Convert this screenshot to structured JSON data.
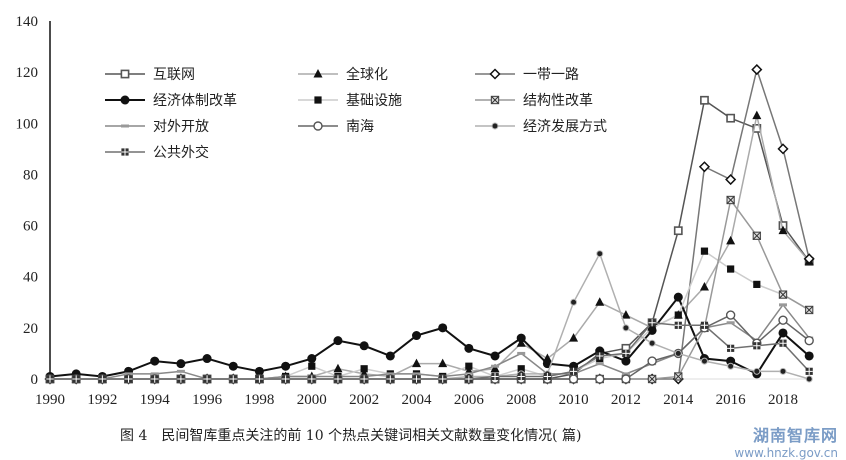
{
  "chart_data": {
    "type": "line",
    "title": "",
    "xlabel": "",
    "ylabel": "",
    "ylim": [
      0,
      140
    ],
    "yticks": [
      0,
      20,
      40,
      60,
      80,
      100,
      120,
      140
    ],
    "xticks": [
      1990,
      1992,
      1994,
      1996,
      1998,
      2000,
      2002,
      2004,
      2006,
      2008,
      2010,
      2012,
      2014,
      2016,
      2018
    ],
    "grid": false,
    "legend_position": "upper-left-inside",
    "x": [
      1990,
      1991,
      1992,
      1993,
      1994,
      1995,
      1996,
      1997,
      1998,
      1999,
      2000,
      2001,
      2002,
      2003,
      2004,
      2005,
      2006,
      2007,
      2008,
      2009,
      2010,
      2011,
      2012,
      2013,
      2014,
      2015,
      2016,
      2017,
      2018,
      2019
    ],
    "series": [
      {
        "name": "互联网",
        "color": "#555555",
        "marker": "square",
        "values": [
          0,
          0,
          0,
          0,
          0,
          0,
          0,
          0,
          0,
          0,
          0,
          0,
          0,
          0,
          0,
          0,
          0,
          0,
          0,
          0,
          2,
          10,
          12,
          22,
          58,
          109,
          102,
          98,
          60,
          46
        ]
      },
      {
        "name": "全球化",
        "color": "#aaaaaa",
        "marker": "triangle",
        "values": [
          0,
          0,
          0,
          0,
          0,
          0,
          0,
          0,
          0,
          1,
          1,
          4,
          2,
          1,
          6,
          6,
          3,
          4,
          14,
          8,
          16,
          30,
          25,
          20,
          25,
          36,
          54,
          103,
          58,
          46
        ]
      },
      {
        "name": "一带一路",
        "color": "#777777",
        "marker": "diamond",
        "values": [
          0,
          0,
          0,
          0,
          0,
          0,
          0,
          0,
          0,
          0,
          0,
          0,
          0,
          0,
          0,
          0,
          0,
          0,
          0,
          0,
          0,
          0,
          0,
          0,
          0,
          83,
          78,
          121,
          90,
          47
        ]
      },
      {
        "name": "经济体制改革",
        "color": "#111111",
        "marker": "circle",
        "values": [
          1,
          2,
          1,
          3,
          7,
          6,
          8,
          5,
          3,
          5,
          8,
          15,
          13,
          9,
          17,
          20,
          12,
          9,
          16,
          6,
          5,
          11,
          7,
          19,
          32,
          8,
          7,
          2,
          18,
          9
        ]
      },
      {
        "name": "基础设施",
        "color": "#cccccc",
        "marker": "filled-square",
        "values": [
          0,
          0,
          0,
          0,
          0,
          0,
          0,
          0,
          0,
          1,
          5,
          1,
          4,
          2,
          2,
          1,
          5,
          1,
          4,
          1,
          3,
          8,
          10,
          20,
          25,
          50,
          43,
          37,
          33,
          27
        ]
      },
      {
        "name": "结构性改革",
        "color": "#999999",
        "marker": "x-square",
        "values": [
          0,
          0,
          0,
          0,
          0,
          0,
          0,
          0,
          0,
          0,
          0,
          0,
          0,
          0,
          0,
          0,
          0,
          0,
          0,
          0,
          0,
          0,
          0,
          0,
          1,
          20,
          70,
          56,
          33,
          27
        ]
      },
      {
        "name": "对外开放",
        "color": "#888888",
        "marker": "dash",
        "values": [
          0,
          0,
          0,
          2,
          2,
          3,
          0,
          0,
          0,
          1,
          1,
          1,
          1,
          2,
          2,
          1,
          2,
          5,
          10,
          2,
          2,
          6,
          2,
          6,
          10,
          20,
          22,
          15,
          29,
          16
        ]
      },
      {
        "name": "南海",
        "color": "#666666",
        "marker": "open-circle",
        "values": [
          0,
          0,
          0,
          0,
          0,
          0,
          0,
          0,
          0,
          0,
          0,
          0,
          0,
          0,
          0,
          0,
          0,
          0,
          0,
          0,
          0,
          0,
          0,
          7,
          10,
          20,
          25,
          14,
          23,
          15
        ]
      },
      {
        "name": "经济发展方式",
        "color": "#b0b0b0",
        "marker": "small-dot",
        "values": [
          0,
          0,
          0,
          0,
          0,
          0,
          0,
          0,
          0,
          0,
          0,
          0,
          0,
          0,
          0,
          0,
          1,
          1,
          2,
          2,
          30,
          49,
          20,
          14,
          10,
          7,
          5,
          3,
          3,
          0
        ]
      },
      {
        "name": "公共外交",
        "color": "#707070",
        "marker": "plus-square",
        "values": [
          0,
          0,
          0,
          0,
          0,
          0,
          0,
          0,
          0,
          0,
          0,
          0,
          0,
          0,
          0,
          0,
          0,
          1,
          1,
          1,
          3,
          9,
          10,
          22,
          21,
          21,
          12,
          13,
          14,
          3
        ]
      }
    ]
  },
  "legend": {
    "items": [
      "互联网",
      "全球化",
      "一带一路",
      "经济体制改革",
      "基础设施",
      "结构性改革",
      "对外开放",
      "南海",
      "经济发展方式",
      "公共外交"
    ]
  },
  "caption": "图 4　民间智库重点关注的前 10 个热点关键词相关文献数量变化情况( 篇)",
  "watermark": {
    "title": "湖南智库网",
    "url": "www.hnzk.gov.cn"
  }
}
